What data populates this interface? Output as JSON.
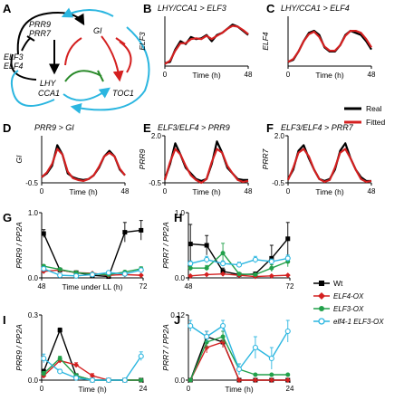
{
  "panel_letters": [
    "A",
    "B",
    "C",
    "D",
    "E",
    "F",
    "G",
    "H",
    "I",
    "J"
  ],
  "diagram": {
    "nodes": [
      {
        "id": "prr9",
        "lines": [
          "PRR9",
          "PRR7"
        ]
      },
      {
        "id": "elf",
        "lines": [
          "ELF3",
          "ELF4"
        ]
      },
      {
        "id": "lhy",
        "lines": [
          "LHY",
          "CCA1"
        ]
      },
      {
        "id": "gi",
        "lines": [
          "GI"
        ]
      },
      {
        "id": "toc1",
        "lines": [
          "TOC1"
        ]
      }
    ],
    "colors": {
      "black": "#000000",
      "cyan": "#2bb6e0",
      "red": "#d42020",
      "green": "#2a8a2a"
    }
  },
  "top_legend": {
    "entries": [
      {
        "label": "Real",
        "color": "#000000"
      },
      {
        "label": "Fitted",
        "color": "#d42020"
      }
    ]
  },
  "bottom_legend": {
    "entries": [
      {
        "label": "Wt",
        "color": "#000000",
        "marker": "square"
      },
      {
        "label": "ELF4-OX",
        "color": "#d42020",
        "marker": "diamond"
      },
      {
        "label": "ELF3-OX",
        "color": "#22a04a",
        "marker": "circle"
      },
      {
        "label": "elf4-1 ELF3-OX",
        "color": "#2bb6e0",
        "marker": "open-circle"
      }
    ]
  },
  "chart_data": [
    {
      "panel": "B",
      "type": "line",
      "title": "LHY/CCA1 > ELF3",
      "ylabel": "ELF3",
      "xlabel": "Time (h)",
      "xlim": [
        0,
        48
      ],
      "ylim": [
        -0.05,
        1.15
      ],
      "xticks": [
        "0",
        "48"
      ],
      "yticks": [],
      "x": [
        0,
        3,
        6,
        9,
        12,
        15,
        18,
        21,
        24,
        27,
        30,
        33,
        36,
        39,
        42,
        45,
        48
      ],
      "series": [
        {
          "name": "Real",
          "values": [
            0.02,
            0.05,
            0.35,
            0.55,
            0.48,
            0.65,
            0.6,
            0.62,
            0.7,
            0.55,
            0.7,
            0.75,
            0.85,
            0.95,
            0.9,
            0.8,
            0.7
          ]
        },
        {
          "name": "Fitted",
          "values": [
            0.0,
            0.08,
            0.32,
            0.5,
            0.5,
            0.6,
            0.62,
            0.6,
            0.68,
            0.6,
            0.68,
            0.75,
            0.85,
            0.92,
            0.9,
            0.82,
            0.72
          ]
        }
      ]
    },
    {
      "panel": "C",
      "type": "line",
      "title": "LHY/CCA1 > ELF4",
      "ylabel": "ELF4",
      "xlabel": "Time (h)",
      "xlim": [
        0,
        48
      ],
      "ylim": [
        -0.05,
        1.15
      ],
      "xticks": [
        "0",
        "48"
      ],
      "yticks": [],
      "x": [
        0,
        3,
        6,
        9,
        12,
        15,
        18,
        21,
        24,
        27,
        30,
        33,
        36,
        39,
        42,
        45,
        48
      ],
      "series": [
        {
          "name": "Real",
          "values": [
            0.05,
            0.1,
            0.3,
            0.55,
            0.75,
            0.8,
            0.7,
            0.4,
            0.3,
            0.3,
            0.45,
            0.7,
            0.8,
            0.75,
            0.7,
            0.55,
            0.35
          ]
        },
        {
          "name": "Fitted",
          "values": [
            0.05,
            0.12,
            0.3,
            0.55,
            0.72,
            0.78,
            0.65,
            0.42,
            0.32,
            0.32,
            0.45,
            0.68,
            0.8,
            0.8,
            0.75,
            0.6,
            0.4
          ]
        }
      ]
    },
    {
      "panel": "D",
      "type": "line",
      "title": "PRR9 > GI",
      "ylabel": "GI",
      "xlabel": "Time (h)",
      "xlim": [
        0,
        48
      ],
      "ylim": [
        -0.5,
        2.0
      ],
      "xticks": [
        "0",
        "48"
      ],
      "yticks": [
        "-0.5"
      ],
      "x": [
        0,
        3,
        6,
        9,
        12,
        15,
        18,
        21,
        24,
        27,
        30,
        33,
        36,
        39,
        42,
        45,
        48
      ],
      "series": [
        {
          "name": "Real",
          "values": [
            -0.2,
            0.0,
            0.4,
            1.5,
            1.0,
            0.0,
            -0.2,
            -0.3,
            -0.35,
            -0.3,
            -0.1,
            0.3,
            0.9,
            1.2,
            0.9,
            0.2,
            -0.1
          ]
        },
        {
          "name": "Fitted",
          "values": [
            -0.2,
            0.05,
            0.5,
            1.3,
            1.0,
            0.1,
            -0.25,
            -0.35,
            -0.4,
            -0.3,
            -0.1,
            0.35,
            0.9,
            1.1,
            0.9,
            0.25,
            -0.1
          ]
        }
      ]
    },
    {
      "panel": "E",
      "type": "line",
      "title": "ELF3/ELF4 > PRR9",
      "ylabel": "PRR9",
      "xlabel": "Time (h)",
      "xlim": [
        0,
        48
      ],
      "ylim": [
        -0.5,
        2.0
      ],
      "xticks": [
        "0",
        "48"
      ],
      "yticks": [
        "2.0",
        "-0.5"
      ],
      "x": [
        0,
        3,
        6,
        9,
        12,
        15,
        18,
        21,
        24,
        27,
        30,
        33,
        36,
        39,
        42,
        45,
        48
      ],
      "series": [
        {
          "name": "Real",
          "values": [
            -0.3,
            0.5,
            1.6,
            1.0,
            0.3,
            0.0,
            -0.3,
            -0.4,
            -0.3,
            0.5,
            1.7,
            1.1,
            0.3,
            0.0,
            -0.3,
            -0.35,
            -0.35
          ]
        },
        {
          "name": "Fitted",
          "values": [
            -0.35,
            0.6,
            1.3,
            1.0,
            0.4,
            -0.1,
            -0.35,
            -0.5,
            -0.3,
            0.6,
            1.3,
            1.1,
            0.4,
            0.0,
            -0.35,
            -0.45,
            -0.4
          ]
        }
      ]
    },
    {
      "panel": "F",
      "type": "line",
      "title": "ELF3/ELF4 > PRR7",
      "ylabel": "PRR7",
      "xlabel": "Time (h)",
      "xlim": [
        0,
        48
      ],
      "ylim": [
        -0.5,
        2.0
      ],
      "xticks": [
        "0",
        "48"
      ],
      "yticks": [
        "2.0",
        "-0.5"
      ],
      "x": [
        0,
        3,
        6,
        9,
        12,
        15,
        18,
        21,
        24,
        27,
        30,
        33,
        36,
        39,
        42,
        45,
        48
      ],
      "series": [
        {
          "name": "Real",
          "values": [
            -0.3,
            0.2,
            1.2,
            1.5,
            0.8,
            0.2,
            -0.3,
            -0.4,
            -0.3,
            0.2,
            1.2,
            1.6,
            0.8,
            0.2,
            -0.2,
            -0.4,
            -0.4
          ]
        },
        {
          "name": "Fitted",
          "values": [
            -0.35,
            0.3,
            1.1,
            1.3,
            0.9,
            0.2,
            -0.3,
            -0.45,
            -0.35,
            0.3,
            1.1,
            1.3,
            0.8,
            0.2,
            -0.3,
            -0.45,
            -0.4
          ]
        }
      ]
    },
    {
      "panel": "G",
      "type": "line",
      "title": "",
      "ylabel": "PRR9 / PP2A",
      "xlabel": "Time under LL (h)",
      "xlim": [
        47.5,
        72.5
      ],
      "ylim": [
        0,
        1.0
      ],
      "xticks": [
        "48",
        "72"
      ],
      "yticks": [
        "1.0",
        "0.0"
      ],
      "x": [
        48,
        52,
        56,
        60,
        64,
        68,
        72
      ],
      "series": [
        {
          "name": "Wt",
          "values": [
            0.68,
            0.12,
            0.08,
            0.04,
            0.02,
            0.7,
            0.73
          ],
          "err": [
            0.06,
            0.02,
            0.01,
            0.01,
            0.01,
            0.15,
            0.15
          ]
        },
        {
          "name": "ELF4-OX",
          "values": [
            0.1,
            0.12,
            0.08,
            0.07,
            0.04,
            0.05,
            0.04
          ],
          "err": [
            0.02,
            0.02,
            0.01,
            0.01,
            0.01,
            0.01,
            0.01
          ]
        },
        {
          "name": "ELF3-OX",
          "values": [
            0.18,
            0.13,
            0.08,
            0.06,
            0.05,
            0.09,
            0.14
          ],
          "err": [
            0.02,
            0.02,
            0.01,
            0.01,
            0.01,
            0.02,
            0.03
          ]
        },
        {
          "name": "elf4-1 ELF3-OX",
          "values": [
            0.14,
            0.04,
            0.03,
            0.05,
            0.08,
            0.06,
            0.12
          ],
          "err": [
            0.02,
            0.01,
            0.01,
            0.01,
            0.02,
            0.01,
            0.02
          ]
        }
      ]
    },
    {
      "panel": "H",
      "type": "line",
      "title": "",
      "ylabel": "PRR7 / PP2A",
      "xlabel": "",
      "xlim": [
        47.5,
        72.5
      ],
      "ylim": [
        0,
        1.0
      ],
      "xticks": [
        "48",
        "72"
      ],
      "yticks": [
        "1.0",
        "0.0"
      ],
      "x": [
        48,
        52,
        56,
        60,
        64,
        68,
        72
      ],
      "series": [
        {
          "name": "Wt",
          "values": [
            0.52,
            0.5,
            0.1,
            0.05,
            0.06,
            0.3,
            0.6
          ],
          "err": [
            0.3,
            0.15,
            0.05,
            0.02,
            0.03,
            0.2,
            0.25
          ]
        },
        {
          "name": "ELF4-OX",
          "values": [
            0.03,
            0.05,
            0.06,
            0.04,
            0.02,
            0.03,
            0.04
          ],
          "err": [
            0.01,
            0.01,
            0.01,
            0.01,
            0.01,
            0.01,
            0.01
          ]
        },
        {
          "name": "ELF3-OX",
          "values": [
            0.15,
            0.15,
            0.38,
            0.06,
            0.05,
            0.15,
            0.25
          ],
          "err": [
            0.04,
            0.04,
            0.15,
            0.02,
            0.02,
            0.05,
            0.08
          ]
        },
        {
          "name": "elf4-1 ELF3-OX",
          "values": [
            0.22,
            0.28,
            0.22,
            0.2,
            0.28,
            0.25,
            0.3
          ],
          "err": [
            0.04,
            0.05,
            0.04,
            0.04,
            0.05,
            0.04,
            0.05
          ]
        }
      ]
    },
    {
      "panel": "I",
      "type": "line",
      "title": "",
      "ylabel": "PRR9 / PP2A",
      "xlabel": "Time (h)",
      "xlim": [
        -0.5,
        24.5
      ],
      "ylim": [
        0,
        0.3
      ],
      "xticks": [
        "0",
        "24"
      ],
      "yticks": [
        "0.3",
        "0.0"
      ],
      "x": [
        0,
        4,
        8,
        12,
        16,
        20,
        24
      ],
      "series": [
        {
          "name": "Wt",
          "values": [
            0.04,
            0.23,
            0.02,
            0.0,
            0.0,
            0.0,
            0.0
          ],
          "err": [
            0.01,
            0.01,
            0.01,
            0.0,
            0.0,
            0.0,
            0.0
          ]
        },
        {
          "name": "ELF4-OX",
          "values": [
            0.02,
            0.09,
            0.07,
            0.02,
            0.0,
            0.0,
            0.0
          ],
          "err": [
            0.01,
            0.01,
            0.01,
            0.01,
            0.0,
            0.0,
            0.0
          ]
        },
        {
          "name": "ELF3-OX",
          "values": [
            0.03,
            0.1,
            0.02,
            0.0,
            0.0,
            0.0,
            0.0
          ],
          "err": [
            0.01,
            0.01,
            0.01,
            0.0,
            0.0,
            0.0,
            0.0
          ]
        },
        {
          "name": "elf4-1 ELF3-OX",
          "values": [
            0.1,
            0.04,
            0.01,
            0.0,
            0.0,
            0.0,
            0.11
          ],
          "err": [
            0.02,
            0.01,
            0.0,
            0.0,
            0.0,
            0.0,
            0.02
          ]
        }
      ]
    },
    {
      "panel": "J",
      "type": "line",
      "title": "",
      "ylabel": "PRR7 / PP2A",
      "xlabel": "Time (h)",
      "xlim": [
        -0.5,
        24.5
      ],
      "ylim": [
        0,
        0.12
      ],
      "xticks": [
        "0",
        "24"
      ],
      "yticks": [
        "0.12",
        "0.0"
      ],
      "x": [
        0,
        4,
        8,
        12,
        16,
        20,
        24
      ],
      "series": [
        {
          "name": "Wt",
          "values": [
            0.0,
            0.08,
            0.07,
            0.0,
            0.0,
            0.0,
            0.0
          ],
          "err": [
            0.0,
            0.01,
            0.01,
            0.0,
            0.0,
            0.0,
            0.0
          ]
        },
        {
          "name": "ELF4-OX",
          "values": [
            0.0,
            0.06,
            0.07,
            0.0,
            0.0,
            0.0,
            0.0
          ],
          "err": [
            0.0,
            0.01,
            0.01,
            0.0,
            0.0,
            0.0,
            0.0
          ]
        },
        {
          "name": "ELF3-OX",
          "values": [
            0.0,
            0.07,
            0.08,
            0.02,
            0.01,
            0.01,
            0.01
          ],
          "err": [
            0.0,
            0.01,
            0.01,
            0.01,
            0.0,
            0.0,
            0.0
          ]
        },
        {
          "name": "elf4-1 ELF3-OX",
          "values": [
            0.1,
            0.08,
            0.1,
            0.02,
            0.06,
            0.04,
            0.09
          ],
          "err": [
            0.01,
            0.01,
            0.01,
            0.01,
            0.02,
            0.02,
            0.02
          ]
        }
      ]
    }
  ]
}
